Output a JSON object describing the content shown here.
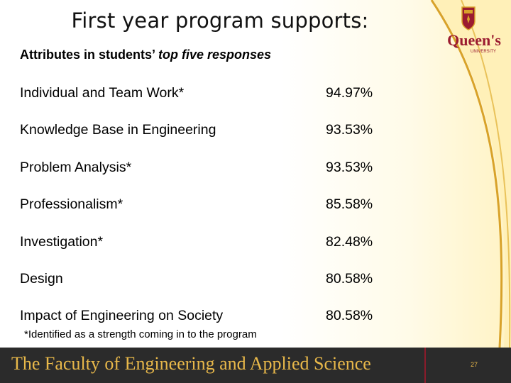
{
  "slide": {
    "title": "First year program supports:",
    "subtitle_plain": "Attributes in students’ ",
    "subtitle_italic": "top five responses",
    "rows": [
      {
        "label": "Individual and Team Work*",
        "value": "94.97%"
      },
      {
        "label": "Knowledge Base in Engineering",
        "value": "93.53%"
      },
      {
        "label": "Problem Analysis*",
        "value": "93.53%"
      },
      {
        "label": "Professionalism*",
        "value": "85.58%"
      },
      {
        "label": "Investigation*",
        "value": "82.48%"
      },
      {
        "label": "Design",
        "value": "80.58%"
      },
      {
        "label": "Impact of Engineering on Society",
        "value": "80.58%"
      }
    ],
    "footnote": "*Identified as a strength coming in to the program",
    "footer_text": "The Faculty of Engineering and Applied Science",
    "page_number": "27",
    "logo_text": "Queen's",
    "logo_subtext": "UNIVERSITY"
  },
  "colors": {
    "footer_bg": "#2b2b2b",
    "footer_text": "#e8b84a",
    "brand_red": "#9b1b30",
    "swoosh_gold": "#d8a22a"
  }
}
